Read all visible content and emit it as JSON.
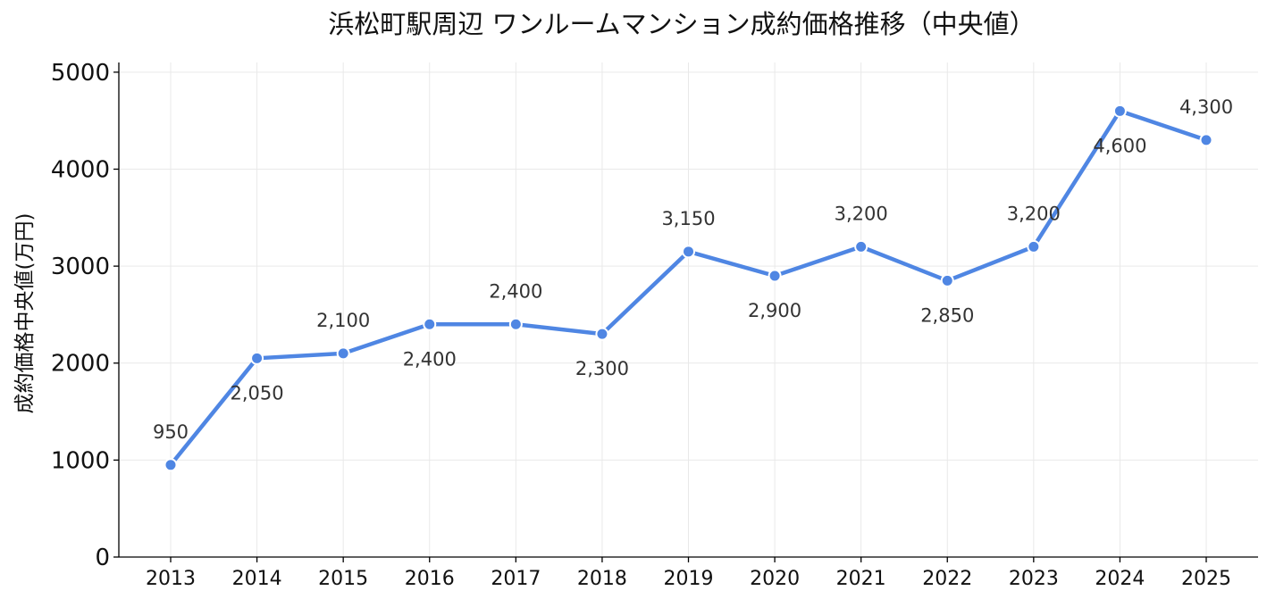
{
  "chart_data": {
    "type": "line",
    "title": "浜松町駅周辺 ワンルームマンション成約価格推移（中央値）",
    "xlabel": "",
    "ylabel": "成約価格中央値(万円)",
    "categories": [
      "2013",
      "2014",
      "2015",
      "2016",
      "2017",
      "2018",
      "2019",
      "2020",
      "2021",
      "2022",
      "2023",
      "2024",
      "2025"
    ],
    "series": [
      {
        "values": [
          950,
          2050,
          2100,
          2400,
          2400,
          2300,
          3150,
          2900,
          3200,
          2850,
          3200,
          4600,
          4300
        ],
        "data_labels": [
          "950",
          "2,050",
          "2,100",
          "2,400",
          "2,400",
          "2,300",
          "3,150",
          "2,900",
          "3,200",
          "2,850",
          "3,200",
          "4,600",
          "4,300"
        ],
        "label_positions": [
          "above",
          "below",
          "above",
          "below",
          "above",
          "below",
          "above",
          "below",
          "above",
          "below",
          "above",
          "below",
          "above"
        ],
        "color": "#4f86e3"
      }
    ],
    "ylim": [
      0,
      5100
    ],
    "yticks": [
      0,
      1000,
      2000,
      3000,
      4000,
      5000
    ],
    "grid": true,
    "legend": "none"
  }
}
